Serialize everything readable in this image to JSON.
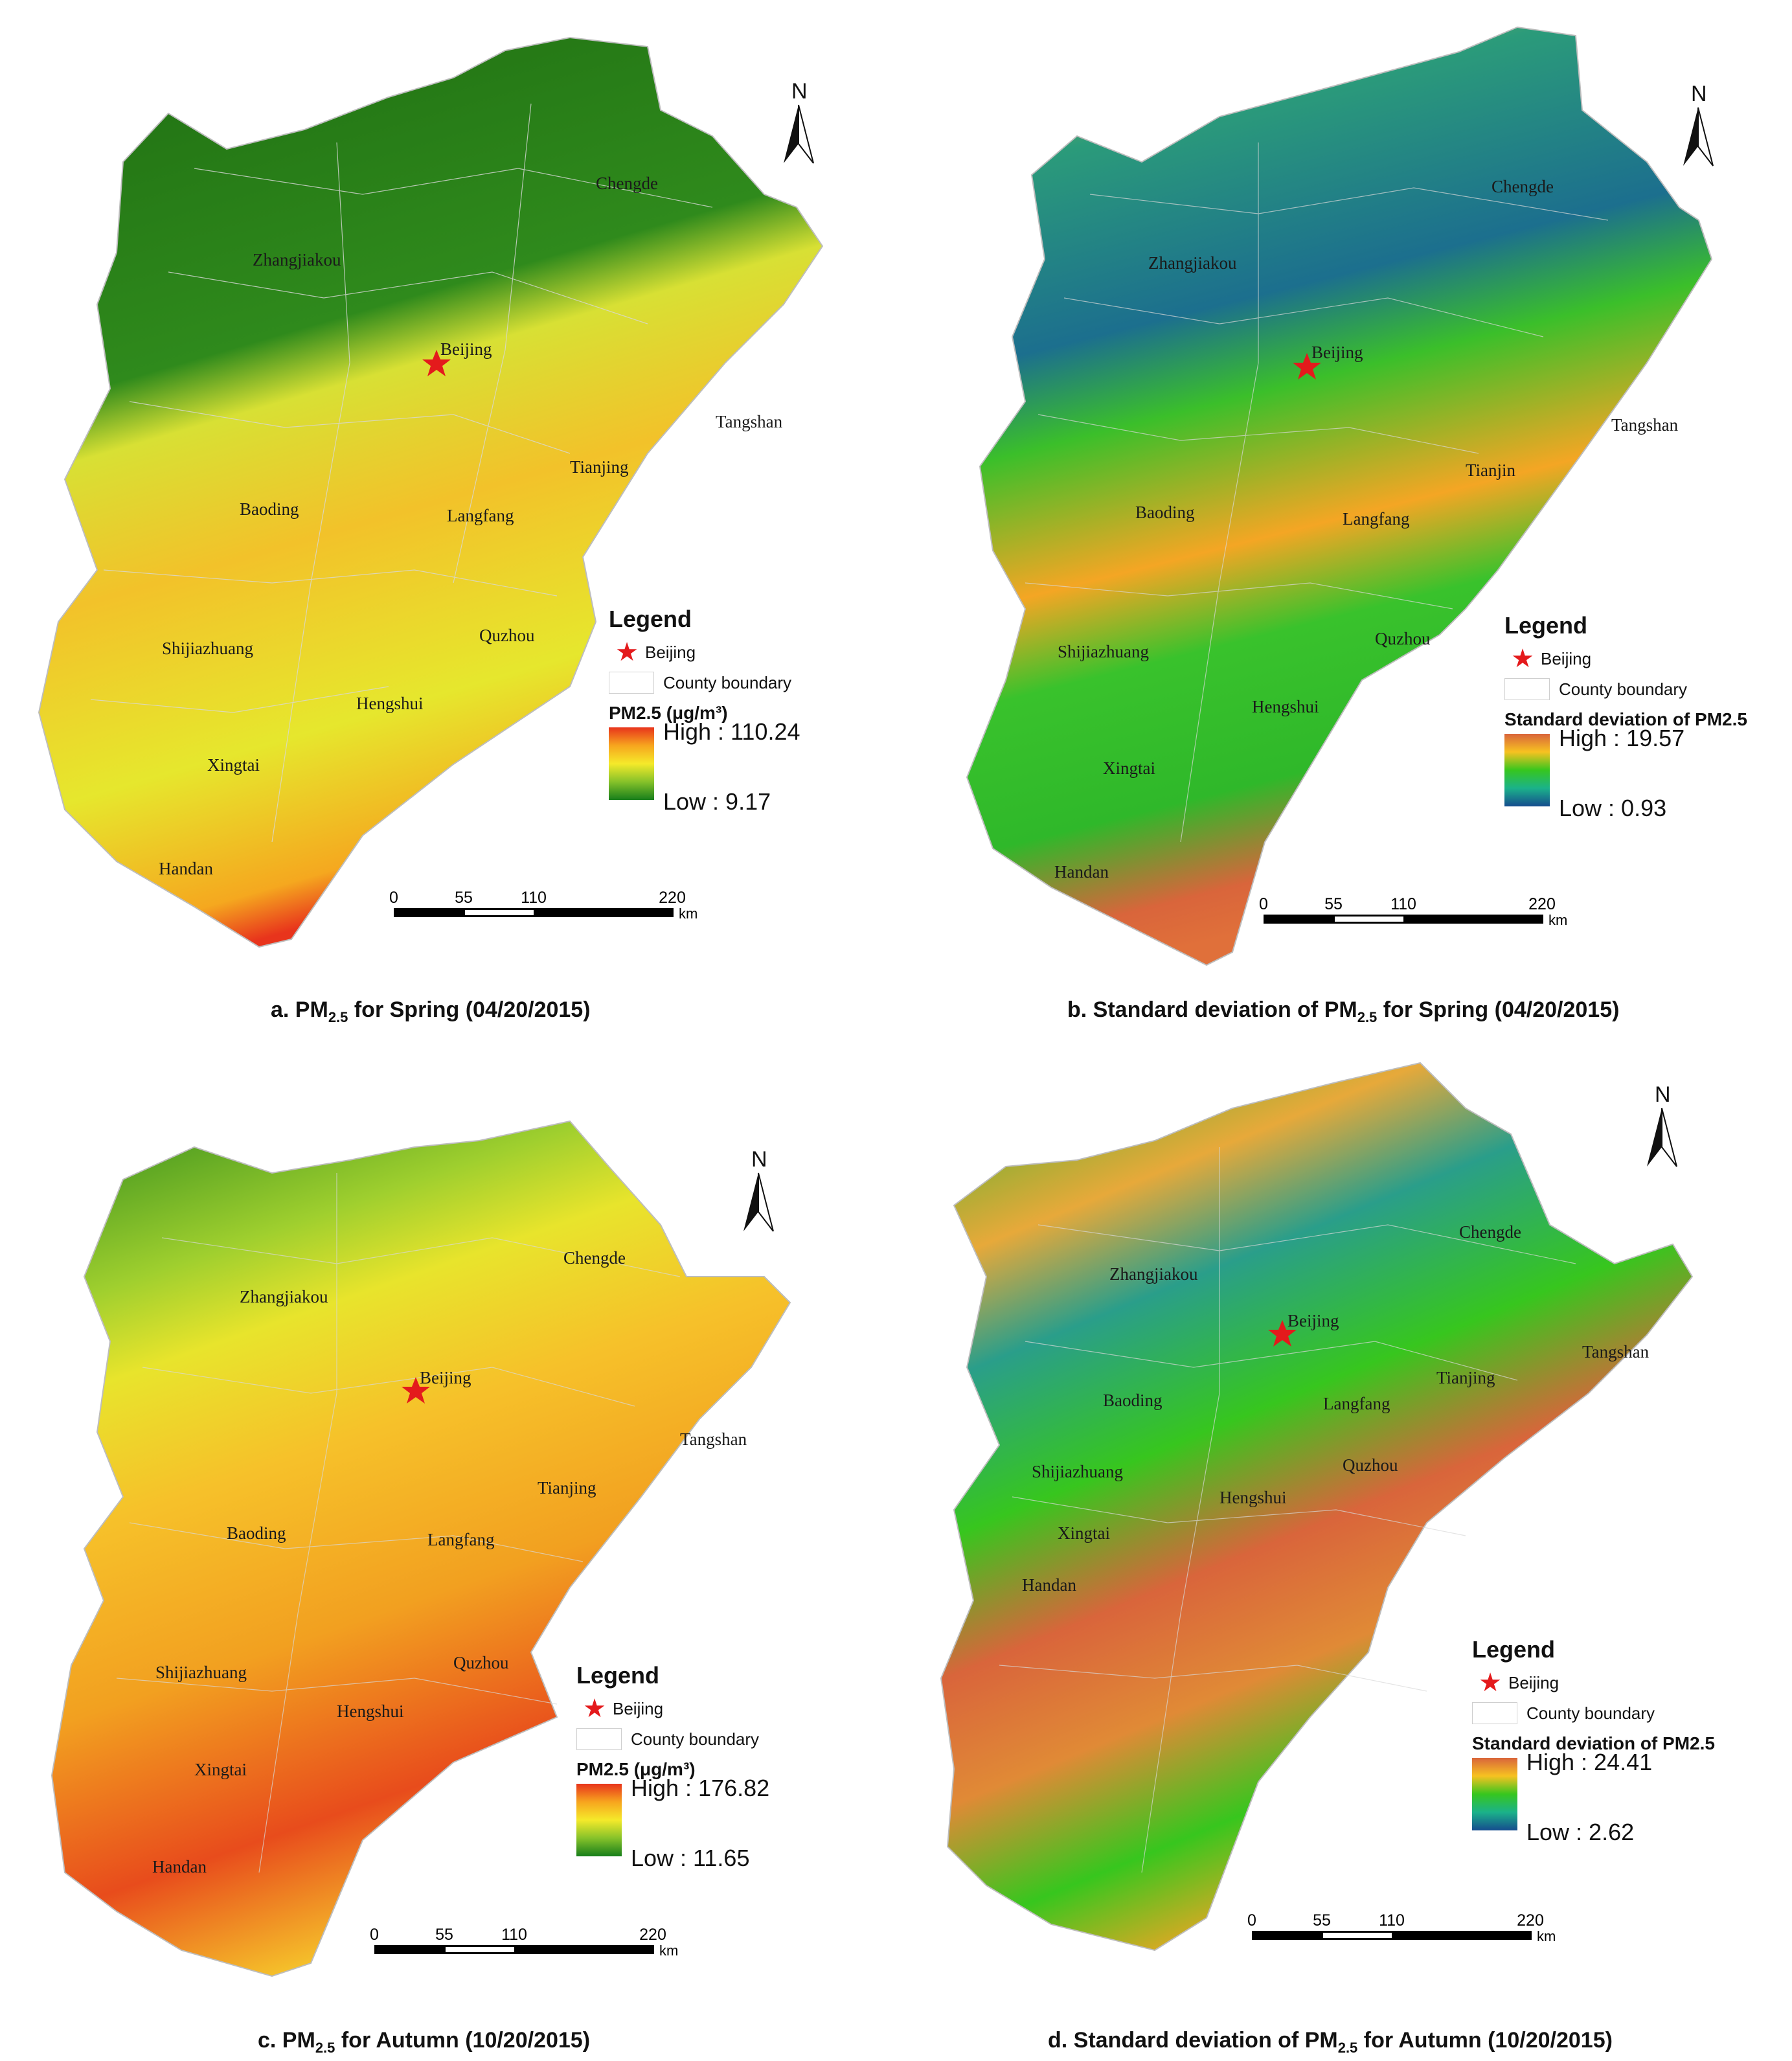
{
  "panels": [
    {
      "id": "a",
      "cities": [
        "Chengde",
        "Zhangjiakou",
        "Beijing",
        "Tangshan",
        "Tianjing",
        "Baoding",
        "Langfang",
        "Shijiazhuang",
        "Quzhou",
        "Hengshui",
        "Xingtai",
        "Handan"
      ],
      "north": "N",
      "legend": {
        "title": "Legend",
        "beijing": "Beijing",
        "county": "County boundary",
        "ramp_title": "PM2.5 (μg/m³)",
        "high": "High : 110.24",
        "low": "Low : 9.17",
        "ramp_colors": [
          "#e8341c",
          "#f7a51e",
          "#f5ea2a",
          "#86c22a",
          "#177e1b"
        ]
      },
      "scale": {
        "ticks": [
          "0",
          "55",
          "110",
          "220"
        ],
        "unit": "km"
      },
      "caption": {
        "prefix": "a. PM",
        "sub": "2.5",
        "suffix": " for Spring (04/20/2015)"
      }
    },
    {
      "id": "b",
      "cities": [
        "Chengde",
        "Zhangjiakou",
        "Beijing",
        "Tangshan",
        "Tianjin",
        "Baoding",
        "Langfang",
        "Shijiazhuang",
        "Quzhou",
        "Hengshui",
        "Xingtai",
        "Handan"
      ],
      "north": "N",
      "legend": {
        "title": "Legend",
        "beijing": "Beijing",
        "county": "County boundary",
        "ramp_title": "Standard deviation of PM2.5",
        "high": "High : 19.57",
        "low": "Low : 0.93",
        "ramp_colors": [
          "#d9653b",
          "#f7c221",
          "#37c61e",
          "#1bb28a",
          "#154c8e"
        ]
      },
      "scale": {
        "ticks": [
          "0",
          "55",
          "110",
          "220"
        ],
        "unit": "km"
      },
      "caption": {
        "prefix": "b. Standard deviation of PM",
        "sub": "2.5",
        "suffix": " for Spring (04/20/2015)"
      }
    },
    {
      "id": "c",
      "cities": [
        "Chengde",
        "Zhangjiakou",
        "Beijing",
        "Tangshan",
        "Tianjing",
        "Baoding",
        "Langfang",
        "Shijiazhuang",
        "Quzhou",
        "Hengshui",
        "Xingtai",
        "Handan"
      ],
      "north": "N",
      "legend": {
        "title": "Legend",
        "beijing": "Beijing",
        "county": "County boundary",
        "ramp_title": "PM2.5 (μg/m³)",
        "high": "High : 176.82",
        "low": "Low : 11.65",
        "ramp_colors": [
          "#e8341c",
          "#f7a51e",
          "#f5ea2a",
          "#86c22a",
          "#177e1b"
        ]
      },
      "scale": {
        "ticks": [
          "0",
          "55",
          "110",
          "220"
        ],
        "unit": "km"
      },
      "caption": {
        "prefix": "c. PM",
        "sub": "2.5",
        "suffix": " for Autumn (10/20/2015)"
      }
    },
    {
      "id": "d",
      "cities": [
        "Chengde",
        "Zhangjiakou",
        "Beijing",
        "Tangshan",
        "Tianjing",
        "Baoding",
        "Langfang",
        "Shijiazhuang",
        "Quzhou",
        "Hengshui",
        "Xingtai",
        "Handan"
      ],
      "north": "N",
      "legend": {
        "title": "Legend",
        "beijing": "Beijing",
        "county": "County boundary",
        "ramp_title": "Standard deviation of PM2.5",
        "high": "High : 24.41",
        "low": "Low : 2.62",
        "ramp_colors": [
          "#d9653b",
          "#f7c221",
          "#37c61e",
          "#1bb28a",
          "#154c8e"
        ]
      },
      "scale": {
        "ticks": [
          "0",
          "55",
          "110",
          "220"
        ],
        "unit": "km"
      },
      "caption": {
        "prefix": "d. Standard deviation of PM",
        "sub": "2.5",
        "suffix": " for Autumn (10/20/2015)"
      }
    }
  ]
}
